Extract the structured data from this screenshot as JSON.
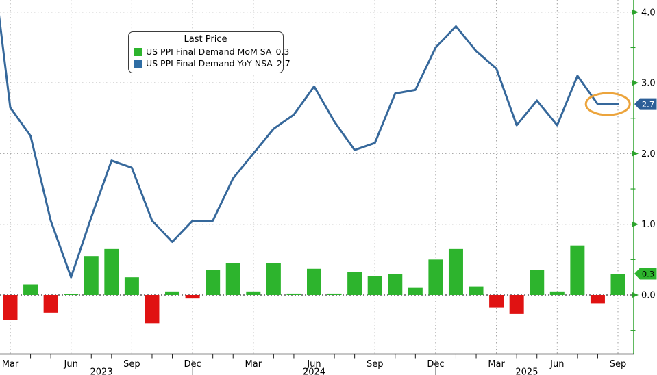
{
  "colors": {
    "background": "#ffffff",
    "bar_green": "#2db42d",
    "bar_red": "#e01212",
    "line_blue": "#36689b",
    "axis_green": "#2ca32c",
    "grid_gray": "#9e9e9e",
    "zero_line": "#3a3a3a",
    "axis_black": "#1a1a1a",
    "text_black": "#000000",
    "ellipse_orange": "#eca43c",
    "tag_blue": "#2d5f98",
    "tag_green": "#2db42d",
    "tag_blue_text": "#ffffff",
    "tag_green_text": "#000000",
    "year_separator_gray": "#666666"
  },
  "legend": {
    "title": "Last Price",
    "items": [
      {
        "label": "US PPI Final Demand MoM SA",
        "value": "0.3",
        "swatch_color": "#2db42d"
      },
      {
        "label": "US PPI Final Demand YoY NSA",
        "value": "2.7",
        "swatch_color": "#2e6da4"
      }
    ]
  },
  "chart_data": {
    "type": "mixed",
    "title": "Last Price",
    "x_categories": [
      "Mar 2023",
      "Apr 2023",
      "May 2023",
      "Jun 2023",
      "Jul 2023",
      "Aug 2023",
      "Sep 2023",
      "Oct 2023",
      "Nov 2023",
      "Dec 2023",
      "Jan 2024",
      "Feb 2024",
      "Mar 2024",
      "Apr 2024",
      "May 2024",
      "Jun 2024",
      "Jul 2024",
      "Aug 2024",
      "Sep 2024",
      "Oct 2024",
      "Nov 2024",
      "Dec 2024",
      "Jan 2025",
      "Feb 2025",
      "Mar 2025",
      "Apr 2025",
      "May 2025",
      "Jun 2025",
      "Jul 2025",
      "Aug 2025",
      "Sep 2025"
    ],
    "series": [
      {
        "name": "US PPI Final Demand MoM SA",
        "type": "bar",
        "last_price": 0.3,
        "values": [
          -0.35,
          0.15,
          -0.25,
          0.0,
          0.55,
          0.65,
          0.25,
          -0.4,
          0.05,
          -0.05,
          0.35,
          0.45,
          0.05,
          0.45,
          0.02,
          0.37,
          0.02,
          0.32,
          0.27,
          0.3,
          0.1,
          0.5,
          0.65,
          0.12,
          -0.18,
          -0.27,
          0.35,
          0.05,
          0.7,
          -0.12,
          0.3
        ]
      },
      {
        "name": "US PPI Final Demand YoY NSA",
        "type": "line",
        "last_price": 2.7,
        "pre_point": {
          "category": "Feb 2023",
          "value": 5.0
        },
        "values": [
          2.65,
          2.25,
          1.05,
          0.25,
          1.1,
          1.9,
          1.8,
          1.05,
          0.75,
          1.05,
          1.05,
          1.65,
          2.0,
          2.35,
          2.55,
          2.95,
          2.45,
          2.05,
          2.15,
          2.85,
          2.9,
          3.5,
          3.8,
          3.45,
          3.2,
          2.4,
          2.75,
          2.4,
          3.1,
          2.7,
          2.7
        ]
      }
    ],
    "y_axis": {
      "side": "right",
      "min": -0.85,
      "max": 4.17,
      "major_ticks": [
        0,
        1,
        2,
        3,
        4
      ],
      "major_tick_labels": [
        "0.0",
        "1.0",
        "2.0",
        "3.0",
        "4.0"
      ],
      "minor_ticks": [
        -0.5,
        0.5,
        1.5,
        2.5,
        3.5
      ],
      "grid_values": [
        1,
        2,
        3,
        4
      ]
    },
    "x_axis": {
      "labeled_months": [
        {
          "index": 0,
          "label": "Mar"
        },
        {
          "index": 3,
          "label": "Jun"
        },
        {
          "index": 6,
          "label": "Sep"
        },
        {
          "index": 9,
          "label": "Dec"
        },
        {
          "index": 12,
          "label": "Mar"
        },
        {
          "index": 15,
          "label": "Jun"
        },
        {
          "index": 18,
          "label": "Sep"
        },
        {
          "index": 21,
          "label": "Dec"
        },
        {
          "index": 24,
          "label": "Mar"
        },
        {
          "index": 27,
          "label": "Jun"
        },
        {
          "index": 30,
          "label": "Sep"
        }
      ],
      "year_labels": [
        {
          "label": "2023",
          "index": 4.5
        },
        {
          "label": "2024",
          "index": 15
        },
        {
          "label": "2025",
          "index": 25.5
        }
      ],
      "year_separator_indices": [
        9,
        21
      ]
    },
    "annotation": {
      "type": "ellipse",
      "highlights": "last two YoY points at 2.7",
      "between_categories": [
        "Aug 2025",
        "Sep 2025"
      ]
    },
    "right_edge_tags": [
      {
        "text": "2.7",
        "series": "US PPI Final Demand YoY NSA"
      },
      {
        "text": "0.3",
        "series": "US PPI Final Demand MoM SA"
      }
    ]
  }
}
